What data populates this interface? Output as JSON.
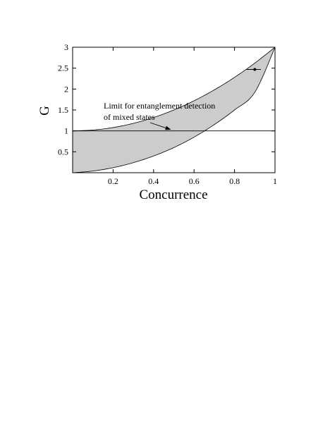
{
  "chart_data": {
    "type": "area",
    "xlabel": "Concurrence",
    "ylabel": "G",
    "xlim": [
      0,
      1
    ],
    "ylim": [
      0,
      3
    ],
    "x_ticks": [
      0.2,
      0.4,
      0.6,
      0.8,
      1
    ],
    "x_tick_labels": [
      "0.2",
      "0.4",
      "0.6",
      "0.8",
      "1"
    ],
    "y_ticks": [
      0.5,
      1,
      1.5,
      2,
      2.5,
      3
    ],
    "y_tick_labels": [
      "0.5",
      "1",
      "1.5",
      "2",
      "2.5",
      "3"
    ],
    "grid": false,
    "shaded_region": {
      "color": "#cccccc",
      "upper_boundary": {
        "x": [
          0,
          0.1,
          0.2,
          0.3,
          0.4,
          0.5,
          0.6,
          0.7,
          0.8,
          0.9,
          1.0
        ],
        "y": [
          1.0,
          1.02,
          1.08,
          1.18,
          1.32,
          1.5,
          1.72,
          1.98,
          2.28,
          2.62,
          3.0
        ]
      },
      "lower_boundary": {
        "x": [
          0,
          0.1,
          0.2,
          0.3,
          0.4,
          0.5,
          0.6,
          0.7,
          0.8,
          0.9,
          1.0
        ],
        "y": [
          0.0,
          0.04,
          0.12,
          0.24,
          0.4,
          0.6,
          0.85,
          1.15,
          1.5,
          1.92,
          3.0
        ]
      }
    },
    "reference_line": {
      "y": 1
    },
    "annotation": {
      "lines": [
        "Limit for entanglement detection",
        "of mixed states"
      ],
      "arrow_to": {
        "x": 0.49,
        "y": 1.0
      }
    },
    "marker": {
      "x": 0.9,
      "y": 2.47,
      "bar_x": [
        0.86,
        0.93
      ]
    }
  }
}
